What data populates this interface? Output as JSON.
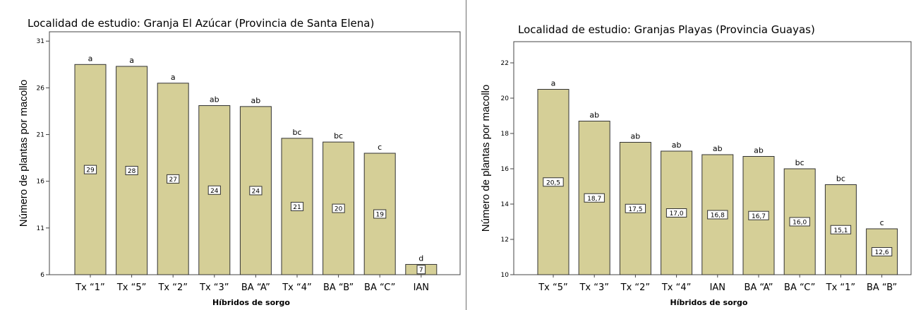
{
  "chart_data": [
    {
      "type": "bar",
      "title": "Localidad de estudio: Granja El Azúcar (Provincia de Santa Elena)",
      "xlabel": "Híbridos de sorgo",
      "ylabel": "Número de plantas por macollo",
      "ylim": [
        6,
        32
      ],
      "yticks": [
        "6",
        "11",
        "16",
        "21",
        "26",
        "31"
      ],
      "grid": false,
      "bar_color": "#d5cf97",
      "categories": [
        "Tx “1”",
        "Tx “5”",
        "Tx “2”",
        "Tx “3”",
        "BA “A”",
        "Tx “4”",
        "BA “B”",
        "BA “C”",
        "IAN"
      ],
      "values": [
        28.5,
        28.3,
        26.5,
        24.1,
        24.0,
        20.6,
        20.2,
        19.0,
        7.1
      ],
      "value_labels": [
        "29",
        "28",
        "27",
        "24",
        "24",
        "21",
        "20",
        "19",
        "7"
      ],
      "letters": [
        "a",
        "a",
        "a",
        "ab",
        "ab",
        "bc",
        "bc",
        "c",
        "d"
      ]
    },
    {
      "type": "bar",
      "title": "Localidad de estudio: Granjas Playas (Provincia Guayas)",
      "xlabel": "Híbridos de sorgo",
      "ylabel": "Número de plantas por macollo",
      "ylim": [
        10,
        23.2
      ],
      "yticks": [
        "10",
        "12",
        "14",
        "16",
        "18",
        "20",
        "22"
      ],
      "grid": false,
      "bar_color": "#d5cf97",
      "categories": [
        "Tx “5”",
        "Tx “3”",
        "Tx “2”",
        "Tx “4”",
        "IAN",
        "BA “A”",
        "BA “C”",
        "Tx “1”",
        "BA “B”"
      ],
      "values": [
        20.5,
        18.7,
        17.5,
        17.0,
        16.8,
        16.7,
        16.0,
        15.1,
        12.6
      ],
      "value_labels": [
        "20,5",
        "18,7",
        "17,5",
        "17,0",
        "16,8",
        "16,7",
        "16,0",
        "15,1",
        "12,6"
      ],
      "letters": [
        "a",
        "ab",
        "ab",
        "ab",
        "ab",
        "ab",
        "bc",
        "bc",
        "c"
      ]
    }
  ]
}
